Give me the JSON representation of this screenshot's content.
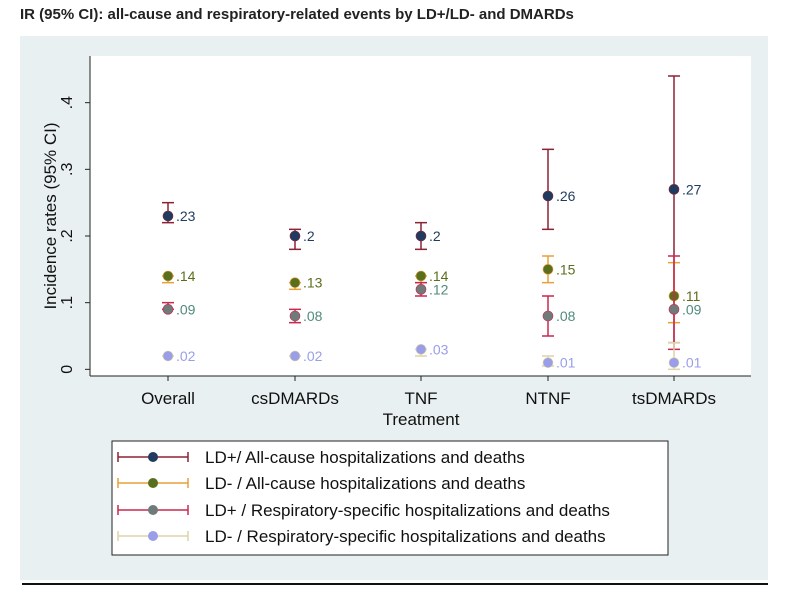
{
  "title": "IR (95% CI): all-cause and respiratory-related events by LD+/LD- and DMARDs",
  "chart_data": {
    "type": "scatter",
    "title": "IR (95% CI): all-cause and respiratory-related events by LD+/LD- and DMARDs",
    "xlabel": "Treatment",
    "ylabel": "Incidence rates (95% CI)",
    "categories": [
      "Overall",
      "csDMARDs",
      "TNF",
      "NTNF",
      "tsDMARDs"
    ],
    "yticks": [
      0,
      0.1,
      0.2,
      0.3,
      0.4
    ],
    "ytick_labels": [
      "0",
      ".1",
      ".2",
      ".3",
      ".4"
    ],
    "ylim": [
      -0.01,
      0.47
    ],
    "grid": false,
    "legend_position": "bottom",
    "series": [
      {
        "name": "LD+/ All-cause hospitalizations and deaths",
        "marker_color": "#1f3b5f",
        "ci_color": "#8b2335",
        "label_color": "#1f3b5f",
        "values": [
          0.23,
          0.2,
          0.2,
          0.26,
          0.27
        ],
        "lower": [
          0.22,
          0.18,
          0.18,
          0.21,
          0.04
        ],
        "upper": [
          0.25,
          0.21,
          0.22,
          0.33,
          0.44
        ],
        "labels": [
          ".23",
          ".2",
          ".2",
          ".26",
          ".27"
        ]
      },
      {
        "name": "LD- / All-cause hospitalizations and deaths",
        "marker_color": "#5a6f1e",
        "ci_color": "#e8a13a",
        "label_color": "#5a6f1e",
        "values": [
          0.14,
          0.13,
          0.14,
          0.15,
          0.11
        ],
        "lower": [
          0.13,
          0.12,
          0.13,
          0.13,
          0.07
        ],
        "upper": [
          0.14,
          0.13,
          0.14,
          0.17,
          0.16
        ],
        "labels": [
          ".14",
          ".13",
          ".14",
          ".15",
          ".11"
        ]
      },
      {
        "name": "LD+ / Respiratory-specific hospitalizations and deaths",
        "marker_color": "#6f7a7a",
        "ci_color": "#c8284f",
        "label_color": "#4f8a7a",
        "values": [
          0.09,
          0.08,
          0.12,
          0.08,
          0.09
        ],
        "lower": [
          0.09,
          0.07,
          0.11,
          0.05,
          0.03
        ],
        "upper": [
          0.1,
          0.09,
          0.13,
          0.11,
          0.17
        ],
        "labels": [
          ".09",
          ".08",
          ".12",
          ".08",
          ".09"
        ]
      },
      {
        "name": "LD- / Respiratory-specific hospitalizations and deaths",
        "marker_color": "#9a9ee8",
        "ci_color": "#ddd4a8",
        "label_color": "#9a9ee8",
        "values": [
          0.02,
          0.02,
          0.03,
          0.01,
          0.01
        ],
        "lower": [
          0.02,
          0.02,
          0.02,
          0.005,
          0.0
        ],
        "upper": [
          0.02,
          0.02,
          0.03,
          0.02,
          0.04
        ],
        "labels": [
          ".02",
          ".02",
          ".03",
          ".01",
          ".01"
        ]
      }
    ]
  }
}
